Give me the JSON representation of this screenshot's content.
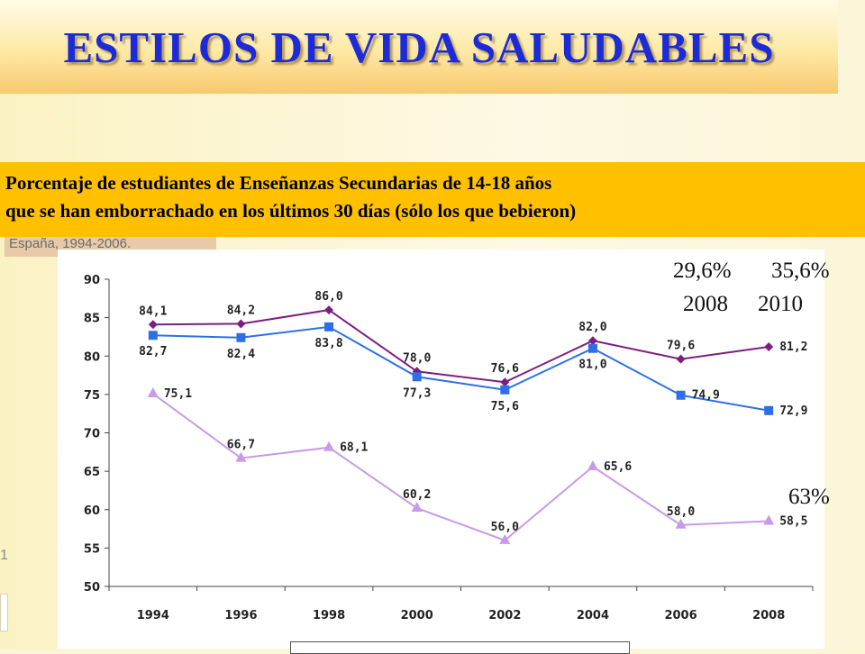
{
  "slide": {
    "title": "ESTILOS DE VIDA SALUDABLES",
    "subtitle_line1": "Porcentaje de estudiantes de Enseñanzas Secundarias de  14-18 años",
    "subtitle_line2": "que se han emborrachado  en los últimos 30 días (sólo los que bebieron)",
    "underlying_text": "España, 1994-2006.",
    "left_mark": "1"
  },
  "notes": {
    "pct_2008": "29,6%",
    "pct_2010": "35,6%",
    "year_2008": "2008",
    "year_2010": "2010",
    "pct_63": "63%"
  },
  "chart_data": {
    "type": "line",
    "x": [
      "1994",
      "1996",
      "1998",
      "2000",
      "2002",
      "2004",
      "2006",
      "2008"
    ],
    "ylim": [
      50,
      90
    ],
    "yticks": [
      "50",
      "55",
      "60",
      "65",
      "70",
      "75",
      "80",
      "85",
      "90"
    ],
    "grid": false,
    "series": [
      {
        "values": [
          84.1,
          84.2,
          86.0,
          78.0,
          76.6,
          82.0,
          79.6,
          81.2
        ],
        "labels": [
          "84,1",
          "84,2",
          "86,0",
          "78,0",
          "76,6",
          "82,0",
          "79,6",
          "81,2"
        ],
        "label_pos": [
          "above",
          "above",
          "above",
          "above",
          "above",
          "above",
          "above",
          "right"
        ],
        "color": "#7b1f7f",
        "marker": "diamond"
      },
      {
        "values": [
          82.7,
          82.4,
          83.8,
          77.3,
          75.6,
          81.0,
          74.9,
          72.9
        ],
        "labels": [
          "82,7",
          "82,4",
          "83,8",
          "77,3",
          "75,6",
          "81,0",
          "74,9",
          "72,9"
        ],
        "label_pos": [
          "below",
          "below",
          "below",
          "below",
          "below",
          "below",
          "right",
          "right"
        ],
        "color": "#2e6fe8",
        "marker": "square"
      },
      {
        "values": [
          75.1,
          66.7,
          68.1,
          60.2,
          56.0,
          65.6,
          58.0,
          58.5
        ],
        "labels": [
          "75,1",
          "66,7",
          "68,1",
          "60,2",
          "56,0",
          "65,6",
          "58,0",
          "58,5"
        ],
        "label_pos": [
          "right",
          "above",
          "right",
          "above",
          "above",
          "right",
          "above",
          "right"
        ],
        "color": "#c79be8",
        "marker": "triangle"
      }
    ]
  }
}
